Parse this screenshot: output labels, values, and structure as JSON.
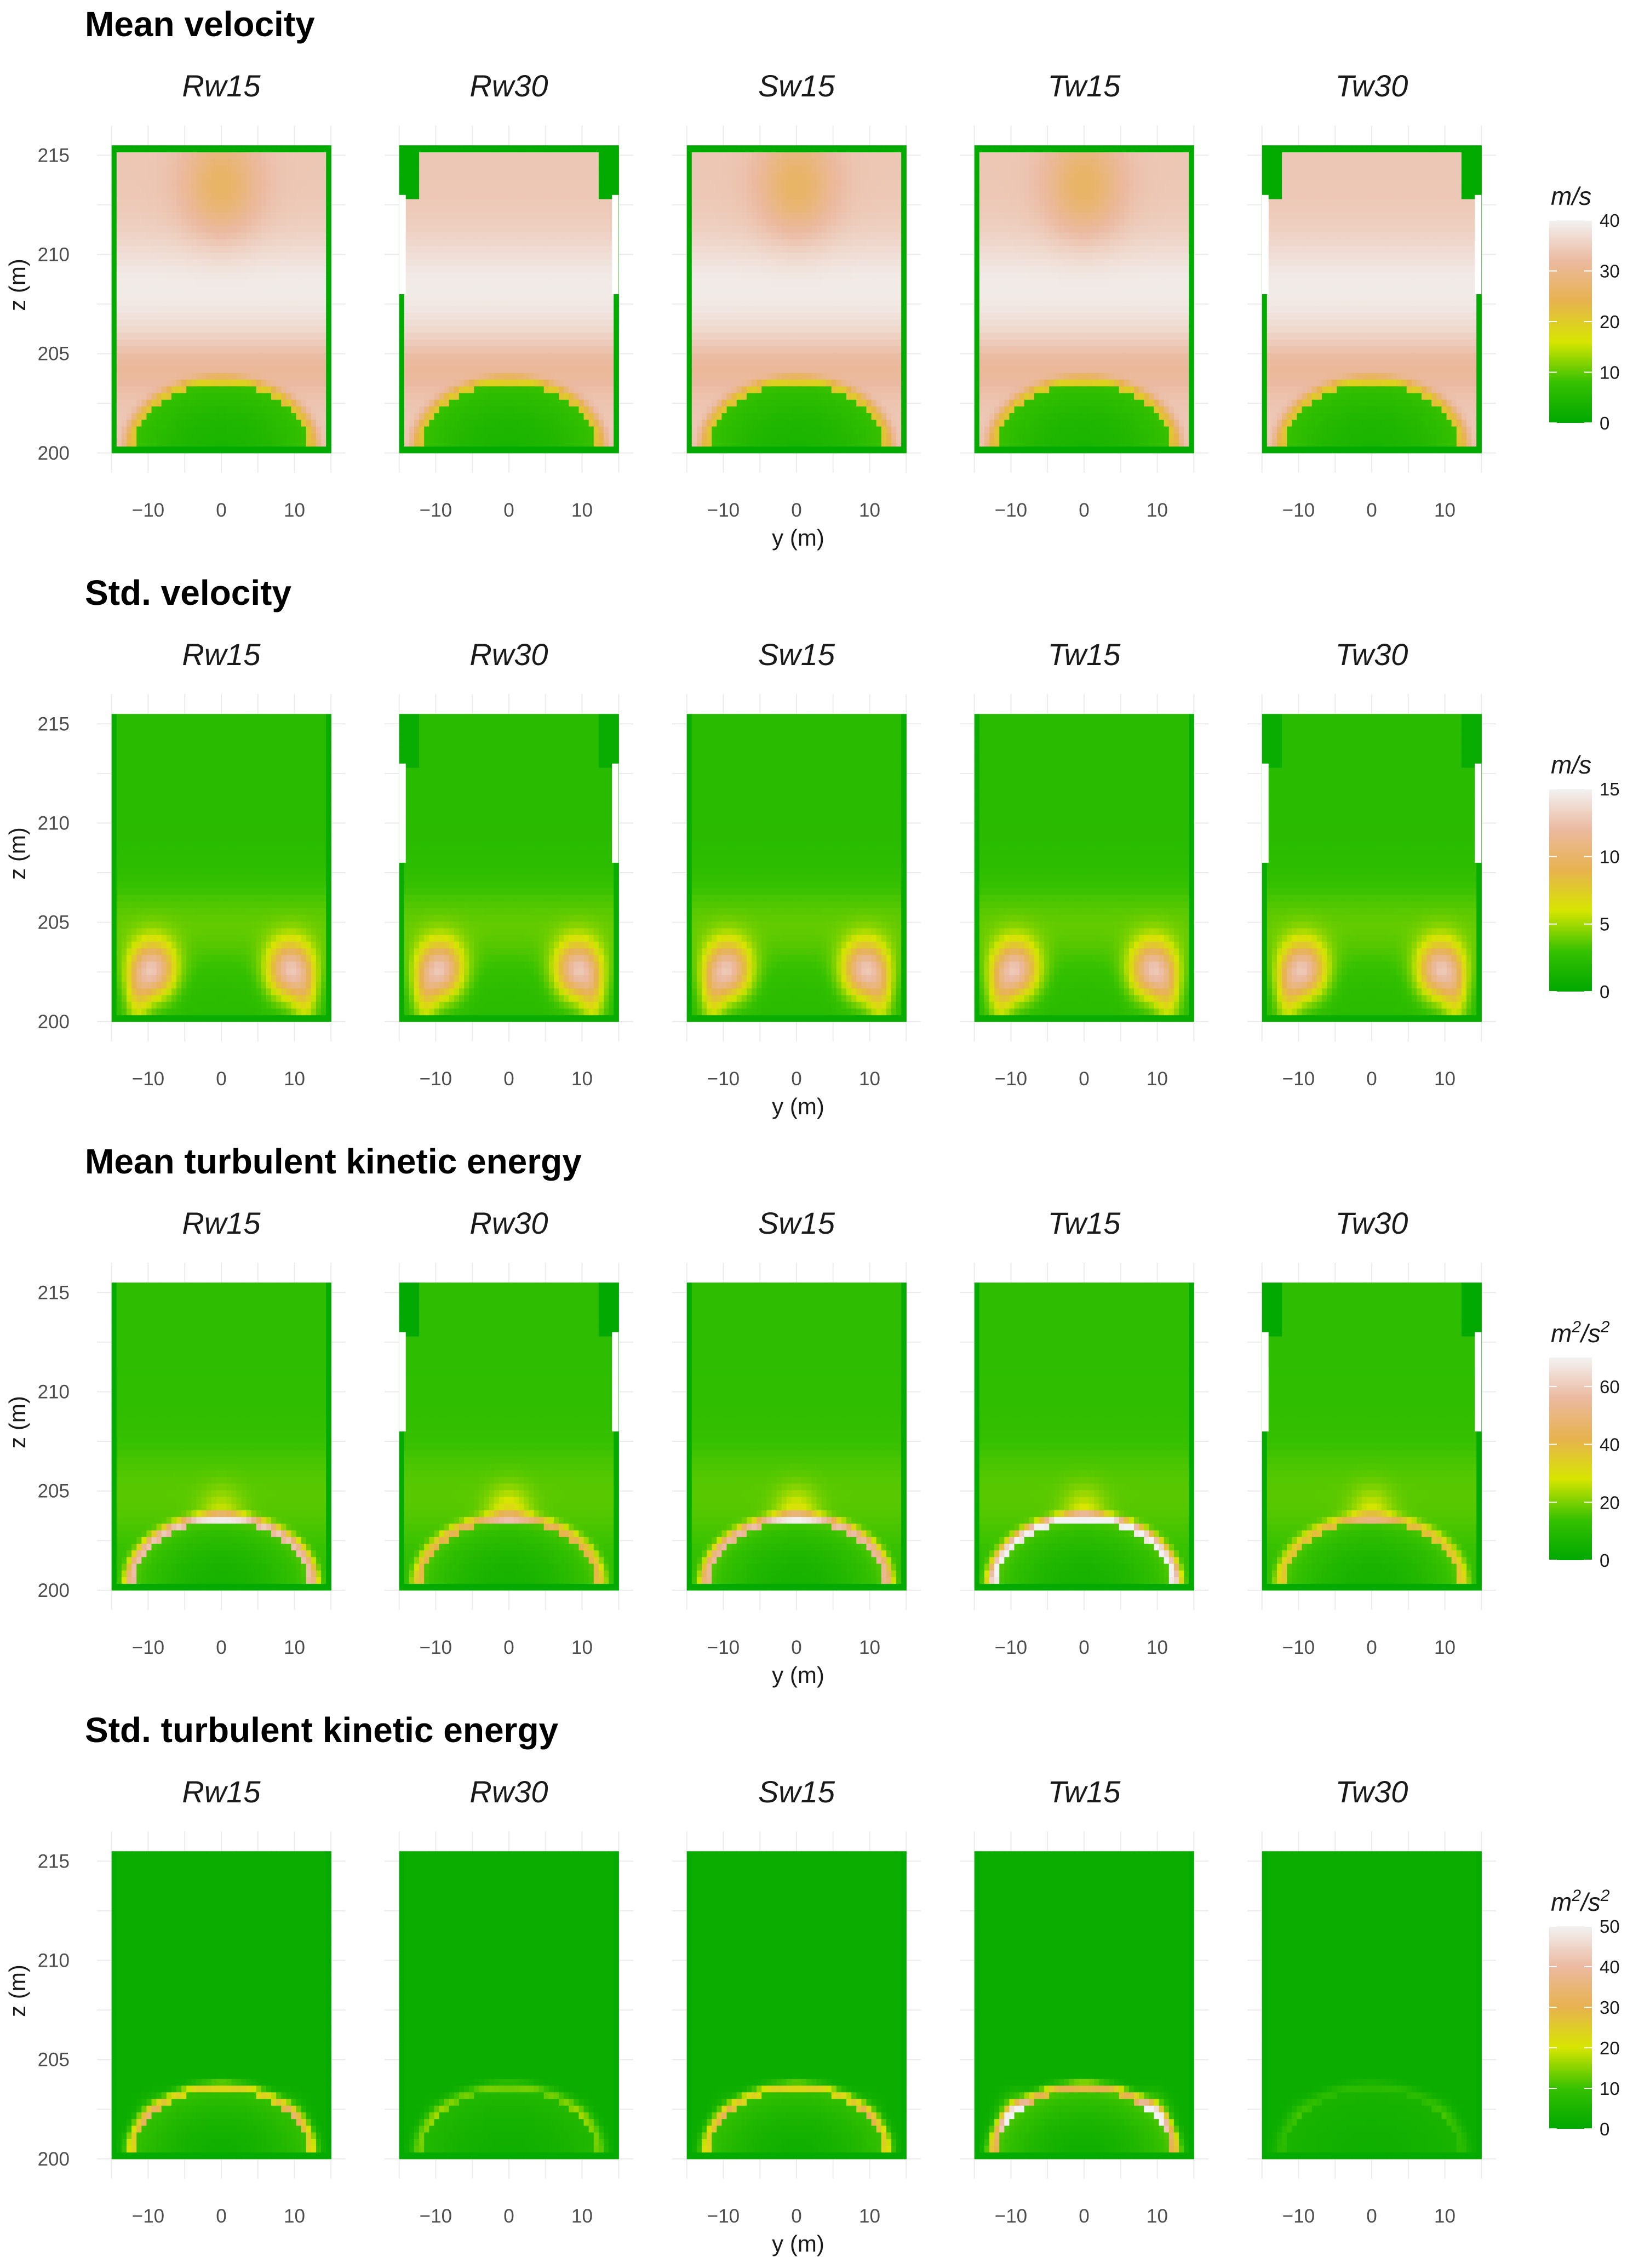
{
  "colors": {
    "scale": [
      "#00a800",
      "#36c100",
      "#d7e500",
      "#e7b24f",
      "#ebb9a0",
      "#f2f2f2"
    ],
    "background": "#ffffff",
    "grid": "#ebebeb"
  },
  "chart_data": [
    {
      "type": "heatmap",
      "title": "Mean velocity",
      "facets": [
        "Rw15",
        "Rw30",
        "Sw15",
        "Tw15",
        "Tw30"
      ],
      "xlabel": "y (m)",
      "ylabel": "z (m)",
      "xticks": [
        -10,
        0,
        10
      ],
      "yticks": [
        200,
        205,
        210,
        215
      ],
      "xlim": [
        -15,
        15
      ],
      "ylim": [
        200,
        215
      ],
      "legend": {
        "title_base": "m",
        "title_sep": "/",
        "title_unit": "s",
        "title_exp": "",
        "ticks": [
          0,
          10,
          20,
          30,
          40
        ],
        "min": 0,
        "max": 40,
        "placement": "right"
      },
      "field": "mean_velocity",
      "field_max": 40,
      "notches": [
        false,
        true,
        false,
        false,
        true
      ]
    },
    {
      "type": "heatmap",
      "title": "Std. velocity",
      "facets": [
        "Rw15",
        "Rw30",
        "Sw15",
        "Tw15",
        "Tw30"
      ],
      "xlabel": "y (m)",
      "ylabel": "z (m)",
      "xticks": [
        -10,
        0,
        10
      ],
      "yticks": [
        200,
        205,
        210,
        215
      ],
      "xlim": [
        -15,
        15
      ],
      "ylim": [
        200,
        215
      ],
      "legend": {
        "title_base": "m",
        "title_sep": "/",
        "title_unit": "s",
        "title_exp": "",
        "ticks": [
          0,
          5,
          10,
          15
        ],
        "min": 0,
        "max": 15,
        "placement": "right"
      },
      "field": "std_velocity",
      "field_max": 15,
      "notches": [
        false,
        true,
        false,
        false,
        true
      ]
    },
    {
      "type": "heatmap",
      "title": "Mean turbulent kinetic energy",
      "facets": [
        "Rw15",
        "Rw30",
        "Sw15",
        "Tw15",
        "Tw30"
      ],
      "xlabel": "y (m)",
      "ylabel": "z (m)",
      "xticks": [
        -10,
        0,
        10
      ],
      "yticks": [
        200,
        205,
        210,
        215
      ],
      "xlim": [
        -15,
        15
      ],
      "ylim": [
        200,
        215
      ],
      "legend": {
        "title_base": "m",
        "title_sep": "/",
        "title_unit": "s",
        "title_exp": "2",
        "ticks": [
          0,
          20,
          40,
          60
        ],
        "min": 0,
        "max": 70,
        "placement": "right"
      },
      "field": "mean_tke",
      "field_max": 70,
      "notches": [
        false,
        true,
        false,
        false,
        true
      ]
    },
    {
      "type": "heatmap",
      "title": "Std. turbulent kinetic energy",
      "facets": [
        "Rw15",
        "Rw30",
        "Sw15",
        "Tw15",
        "Tw30"
      ],
      "xlabel": "y (m)",
      "ylabel": "z (m)",
      "xticks": [
        -10,
        0,
        10
      ],
      "yticks": [
        200,
        205,
        210,
        215
      ],
      "xlim": [
        -15,
        15
      ],
      "ylim": [
        200,
        215
      ],
      "legend": {
        "title_base": "m",
        "title_sep": "/",
        "title_unit": "s",
        "title_exp": "2",
        "ticks": [
          0,
          10,
          20,
          30,
          40,
          50
        ],
        "min": 0,
        "max": 50,
        "placement": "right"
      },
      "field": "std_tke",
      "field_max": 50,
      "notches": [
        false,
        false,
        false,
        false,
        false
      ]
    }
  ]
}
